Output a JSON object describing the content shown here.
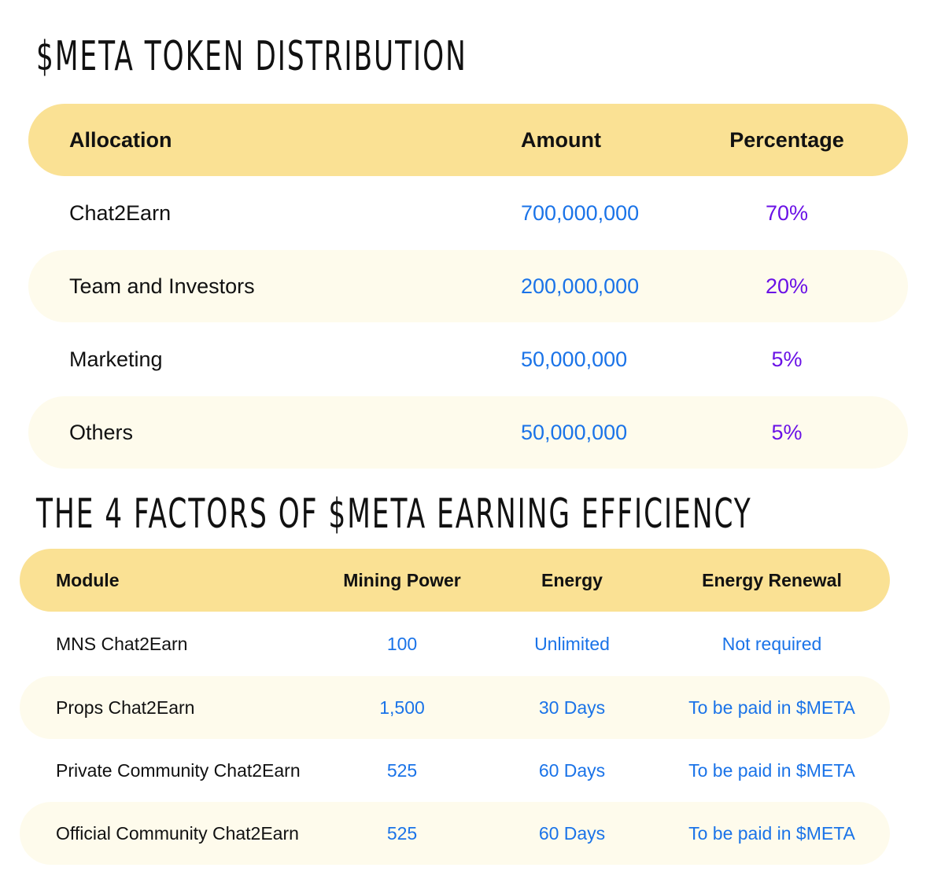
{
  "distribution": {
    "title": "$META TOKEN DISTRIBUTION",
    "headers": {
      "allocation": "Allocation",
      "amount": "Amount",
      "percentage": "Percentage"
    },
    "rows": [
      {
        "allocation": "Chat2Earn",
        "amount": "700,000,000",
        "percentage": "70%"
      },
      {
        "allocation": "Team and Investors",
        "amount": "200,000,000",
        "percentage": "20%"
      },
      {
        "allocation": "Marketing",
        "amount": "50,000,000",
        "percentage": "5%"
      },
      {
        "allocation": "Others",
        "amount": "50,000,000",
        "percentage": "5%"
      }
    ]
  },
  "factors": {
    "title": "THE 4 FACTORS OF $META EARNING EFFICIENCY",
    "headers": {
      "module": "Module",
      "mining_power": "Mining Power",
      "energy": "Energy",
      "energy_renewal": "Energy Renewal"
    },
    "rows": [
      {
        "module": "MNS Chat2Earn",
        "mining_power": "100",
        "energy": "Unlimited",
        "energy_renewal": "Not required"
      },
      {
        "module": "Props Chat2Earn",
        "mining_power": "1,500",
        "energy": "30 Days",
        "energy_renewal": "To be paid in $META"
      },
      {
        "module": "Private Community Chat2Earn",
        "mining_power": "525",
        "energy": "60 Days",
        "energy_renewal": "To be paid in $META"
      },
      {
        "module": "Official Community Chat2Earn",
        "mining_power": "525",
        "energy": "60 Days",
        "energy_renewal": "To be paid in $META"
      }
    ]
  },
  "colors": {
    "header_bg": "#FAE194",
    "alt_row_bg": "#FEFBEC",
    "number_blue": "#1A73E8",
    "percent_purple": "#6A11E6"
  }
}
